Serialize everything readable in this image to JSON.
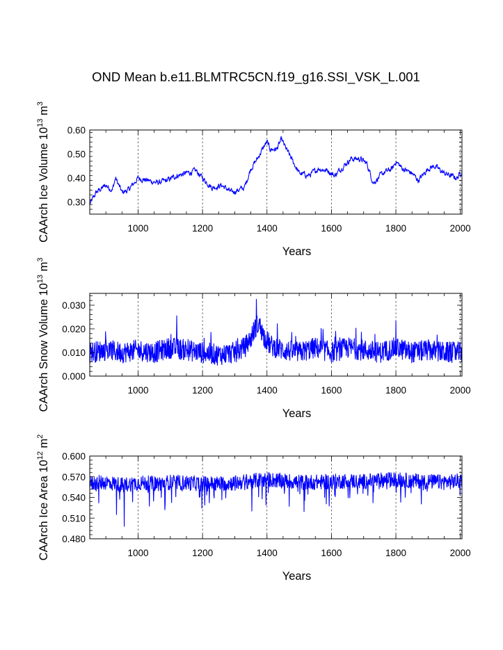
{
  "title": "OND Mean b.e11.BLMTRC5CN.f19_g16.SSI_VSK_L.001",
  "colors": {
    "series": "#0000ff",
    "axes": "#000000",
    "background": "#ffffff"
  },
  "chart_data": [
    {
      "type": "line",
      "xlabel": "Years",
      "ylabel_parts": [
        "CAArch Ice Volume 10",
        "13",
        " m",
        "3"
      ],
      "xlim": [
        850,
        2005
      ],
      "ylim": [
        0.25,
        0.6
      ],
      "xticks": [
        1000,
        1200,
        1400,
        1600,
        1800,
        2000
      ],
      "yticks": [
        "0.30",
        "0.40",
        "0.50",
        "0.60"
      ],
      "grid": "vertical dashed",
      "series": [
        {
          "x": [
            850,
            870,
            900,
            920,
            930,
            950,
            970,
            1000,
            1030,
            1060,
            1090,
            1120,
            1150,
            1180,
            1200,
            1230,
            1260,
            1290,
            1310,
            1330,
            1350,
            1370,
            1390,
            1400,
            1410,
            1430,
            1445,
            1460,
            1480,
            1500,
            1530,
            1560,
            1590,
            1610,
            1630,
            1660,
            1690,
            1710,
            1730,
            1760,
            1790,
            1800,
            1820,
            1850,
            1870,
            1900,
            1920,
            1950,
            1970,
            1990,
            2005
          ],
          "values": [
            0.29,
            0.34,
            0.37,
            0.35,
            0.4,
            0.34,
            0.35,
            0.4,
            0.39,
            0.38,
            0.39,
            0.41,
            0.42,
            0.43,
            0.4,
            0.36,
            0.37,
            0.34,
            0.35,
            0.36,
            0.44,
            0.48,
            0.53,
            0.55,
            0.52,
            0.52,
            0.56,
            0.52,
            0.47,
            0.42,
            0.41,
            0.44,
            0.43,
            0.41,
            0.44,
            0.48,
            0.48,
            0.46,
            0.38,
            0.42,
            0.44,
            0.47,
            0.44,
            0.42,
            0.39,
            0.44,
            0.45,
            0.42,
            0.41,
            0.4,
            0.43
          ]
        }
      ]
    },
    {
      "type": "line",
      "xlabel": "Years",
      "ylabel_parts": [
        "CAArch Snow Volume 10",
        "13",
        " m",
        "3"
      ],
      "xlim": [
        850,
        2005
      ],
      "ylim": [
        0.0,
        0.035
      ],
      "xticks": [
        1000,
        1200,
        1400,
        1600,
        1800,
        2000
      ],
      "yticks": [
        "0.000",
        "0.010",
        "0.020",
        "0.030"
      ],
      "grid": "vertical dashed",
      "series": [
        {
          "x": [
            850,
            900,
            950,
            1000,
            1050,
            1100,
            1150,
            1200,
            1250,
            1300,
            1330,
            1350,
            1365,
            1375,
            1390,
            1410,
            1450,
            1500,
            1550,
            1600,
            1650,
            1700,
            1750,
            1800,
            1850,
            1900,
            1950,
            2005
          ],
          "values": [
            0.01,
            0.011,
            0.01,
            0.011,
            0.01,
            0.012,
            0.011,
            0.01,
            0.009,
            0.01,
            0.012,
            0.016,
            0.021,
            0.022,
            0.017,
            0.013,
            0.011,
            0.01,
            0.012,
            0.01,
            0.012,
            0.011,
            0.01,
            0.012,
            0.01,
            0.011,
            0.01,
            0.01
          ]
        }
      ]
    },
    {
      "type": "line",
      "xlabel": "Years",
      "ylabel_parts": [
        "CAArch Ice Area 10",
        "12",
        " m",
        "2"
      ],
      "xlim": [
        850,
        2005
      ],
      "ylim": [
        0.48,
        0.6
      ],
      "xticks": [
        1000,
        1200,
        1400,
        1600,
        1800,
        2000
      ],
      "yticks": [
        "0.480",
        "0.510",
        "0.540",
        "0.570",
        "0.600"
      ],
      "grid": "vertical dashed",
      "series": [
        {
          "x": [
            850,
            900,
            950,
            1000,
            1050,
            1100,
            1150,
            1200,
            1250,
            1300,
            1350,
            1400,
            1450,
            1500,
            1550,
            1600,
            1650,
            1700,
            1750,
            1800,
            1850,
            1900,
            1950,
            2005
          ],
          "values": [
            0.56,
            0.562,
            0.558,
            0.561,
            0.56,
            0.562,
            0.561,
            0.56,
            0.56,
            0.561,
            0.564,
            0.566,
            0.564,
            0.562,
            0.562,
            0.563,
            0.564,
            0.563,
            0.565,
            0.566,
            0.564,
            0.563,
            0.562,
            0.564
          ]
        }
      ]
    }
  ]
}
